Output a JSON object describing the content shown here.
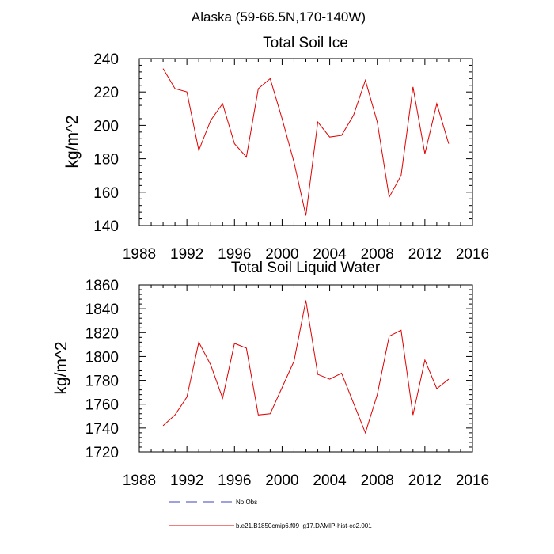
{
  "figure_title": "Alaska (59-66.5N,170-140W)",
  "legend": [
    {
      "label": "No Obs",
      "color": "#4040c0",
      "dash": true
    },
    {
      "label": "b.e21.B1850cmip6.f09_g17.DAMIP-hist-co2.001",
      "color": "#e00000",
      "dash": false
    }
  ],
  "chart_data": [
    {
      "type": "line",
      "title": "Total Soil Ice",
      "xlabel": "",
      "ylabel": "kg/m^2",
      "xlim": [
        1988,
        2016
      ],
      "ylim": [
        140,
        240
      ],
      "xticks": [
        1988,
        1992,
        1996,
        2000,
        2004,
        2008,
        2012,
        2016
      ],
      "yticks": [
        140,
        160,
        180,
        200,
        220,
        240
      ],
      "x": [
        1990,
        1991,
        1992,
        1993,
        1994,
        1995,
        1996,
        1997,
        1998,
        1999,
        2000,
        2001,
        2002,
        2003,
        2004,
        2005,
        2006,
        2007,
        2008,
        2009,
        2010,
        2011,
        2012,
        2013,
        2014
      ],
      "series": [
        {
          "name": "b.e21.B1850cmip6.f09_g17.DAMIP-hist-co2.001",
          "color": "#e00000",
          "values": [
            234,
            222,
            220,
            185,
            203,
            213,
            189,
            181,
            222,
            228,
            204,
            178,
            146,
            202,
            193,
            194,
            206,
            227,
            202,
            157,
            170,
            223,
            183,
            213,
            189
          ]
        }
      ]
    },
    {
      "type": "line",
      "title": "Total Soil Liquid Water",
      "xlabel": "",
      "ylabel": "kg/m^2",
      "xlim": [
        1988,
        2016
      ],
      "ylim": [
        1720,
        1860
      ],
      "xticks": [
        1988,
        1992,
        1996,
        2000,
        2004,
        2008,
        2012,
        2016
      ],
      "yticks": [
        1720,
        1740,
        1760,
        1780,
        1800,
        1820,
        1840,
        1860
      ],
      "x": [
        1990,
        1991,
        1992,
        1993,
        1994,
        1995,
        1996,
        1997,
        1998,
        1999,
        2000,
        2001,
        2002,
        2003,
        2004,
        2005,
        2006,
        2007,
        2008,
        2009,
        2010,
        2011,
        2012,
        2013,
        2014
      ],
      "series": [
        {
          "name": "b.e21.B1850cmip6.f09_g17.DAMIP-hist-co2.001",
          "color": "#e00000",
          "values": [
            1742,
            1751,
            1766,
            1812,
            1793,
            1765,
            1811,
            1807,
            1751,
            1752,
            1774,
            1796,
            1847,
            1785,
            1781,
            1786,
            1761,
            1736,
            1768,
            1817,
            1822,
            1751,
            1797,
            1773,
            1781
          ]
        }
      ]
    }
  ]
}
